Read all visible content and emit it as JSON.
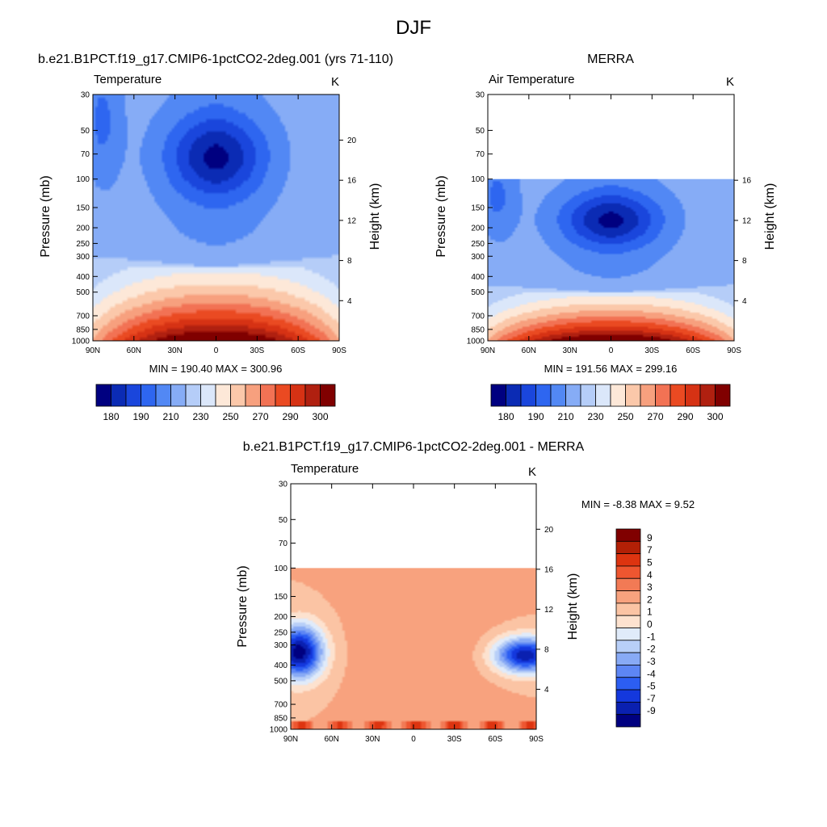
{
  "figure_title": "DJF",
  "colors": {
    "temp_palette": [
      "#000080",
      "#0b2bb4",
      "#1a46dc",
      "#2e66f0",
      "#5288f4",
      "#86acf6",
      "#b5cdf8",
      "#dbe7fa",
      "#fde8d8",
      "#fbc8aa",
      "#f7a07e",
      "#f27254",
      "#ea4a22",
      "#d63214",
      "#b02010",
      "#800000"
    ],
    "diff_palette": [
      "#000080",
      "#0a20b0",
      "#1438dd",
      "#2c5ef2",
      "#5d86f4",
      "#88aaf5",
      "#b8cff8",
      "#e0ebfa",
      "#fde2cf",
      "#fbc4a4",
      "#f8a27e",
      "#f27a55",
      "#ee5630",
      "#dd3410",
      "#b32006",
      "#800000"
    ]
  },
  "chart_data": [
    {
      "type": "heatmap",
      "id": "model",
      "title": "b.e21.B1PCT.f19_g17.CMIP6-1pctCO2-2deg.001 (yrs 71-110)",
      "left_string": "Temperature",
      "right_string": "K",
      "xlabel": "",
      "ylabel": "Pressure (mb)",
      "y2label": "Height (km)",
      "x_ticks": [
        "90N",
        "60N",
        "30N",
        "0",
        "30S",
        "60S",
        "90S"
      ],
      "y_ticks": [
        "30",
        "50",
        "70",
        "100",
        "150",
        "200",
        "250",
        "300",
        "400",
        "500",
        "700",
        "850",
        "1000"
      ],
      "y2_ticks": [
        "20",
        "16",
        "12",
        "8",
        "4"
      ],
      "stats": "MIN = 190.40  MAX = 300.96",
      "colorbar_labels": [
        "180",
        "190",
        "210",
        "230",
        "250",
        "270",
        "290",
        "300"
      ],
      "xlim": [
        90,
        -90
      ],
      "ylim": [
        30,
        1000
      ],
      "min": 190.4,
      "max": 300.96,
      "data_top_mb": 30
    },
    {
      "type": "heatmap",
      "id": "obs",
      "title": "MERRA",
      "left_string": "Air Temperature",
      "right_string": "K",
      "xlabel": "",
      "ylabel": "Pressure (mb)",
      "y2label": "Height (km)",
      "x_ticks": [
        "90N",
        "60N",
        "30N",
        "0",
        "30S",
        "60S",
        "90S"
      ],
      "y_ticks": [
        "30",
        "50",
        "70",
        "100",
        "150",
        "200",
        "250",
        "300",
        "400",
        "500",
        "700",
        "850",
        "1000"
      ],
      "y2_ticks": [
        "16",
        "12",
        "8",
        "4"
      ],
      "stats": "MIN = 191.56  MAX = 299.16",
      "colorbar_labels": [
        "180",
        "190",
        "210",
        "230",
        "250",
        "270",
        "290",
        "300"
      ],
      "xlim": [
        90,
        -90
      ],
      "ylim": [
        30,
        1000
      ],
      "min": 191.56,
      "max": 299.16,
      "data_top_mb": 100
    },
    {
      "type": "heatmap",
      "id": "diff",
      "title": "b.e21.B1PCT.f19_g17.CMIP6-1pctCO2-2deg.001 - MERRA",
      "left_string": "Temperature",
      "right_string": "K",
      "xlabel": "",
      "ylabel": "Pressure (mb)",
      "y2label": "Height (km)",
      "x_ticks": [
        "90N",
        "60N",
        "30N",
        "0",
        "30S",
        "60S",
        "90S"
      ],
      "y_ticks": [
        "30",
        "50",
        "70",
        "100",
        "150",
        "200",
        "250",
        "300",
        "400",
        "500",
        "700",
        "850",
        "1000"
      ],
      "y2_ticks": [
        "20",
        "16",
        "12",
        "8",
        "4"
      ],
      "stats": "MIN =  -8.38  MAX =   9.52",
      "colorbar_labels": [
        "9",
        "7",
        "5",
        "4",
        "3",
        "2",
        "1",
        "0",
        "-1",
        "-2",
        "-3",
        "-4",
        "-5",
        "-7",
        "-9"
      ],
      "xlim": [
        90,
        -90
      ],
      "ylim": [
        30,
        1000
      ],
      "min": -8.38,
      "max": 9.52,
      "data_top_mb": 100
    }
  ]
}
